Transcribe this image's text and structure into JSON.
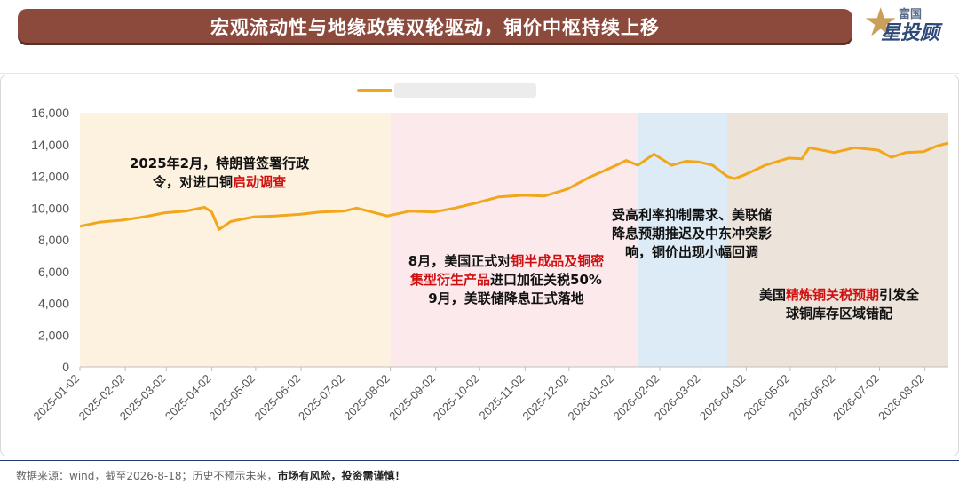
{
  "title": "宏观流动性与地缘政策双轮驱动，铜价中枢持续上移",
  "logo": {
    "line1": "富国",
    "line2": "星投顾"
  },
  "footer": {
    "source": "数据来源：wind，截至2026-8-18；历史不预示未来，",
    "risk": "市场有风险，投资需谨慎！"
  },
  "annotations": {
    "a1": [
      "2025年2月，特朗普签署行政",
      "令，对进口铜",
      "启动调查"
    ],
    "a2": [
      "8月，美国正式对",
      "铜半成品及铜密",
      "集型衍生产品",
      "进口加征关税50%",
      "9月，美联储降息正式落地"
    ],
    "a3": [
      "受高利率抑制需求、美联储",
      "降息预期推迟及中东冲突影",
      "响，铜价出现小幅回调"
    ],
    "a4": [
      "美国",
      "精炼铜关税预期",
      "引发全",
      "球铜库存区域错配"
    ]
  },
  "colors": {
    "line": "#f2a61c",
    "band1": "#fdf1df",
    "band2": "#fbe9ec",
    "band3": "#dcebf6",
    "band4": "#ece3da",
    "highlight": "#d01010"
  },
  "chart_data": {
    "type": "line",
    "title": "",
    "xlabel": "",
    "ylabel": "",
    "ylim": [
      0,
      16000
    ],
    "yticks": [
      0,
      2000,
      4000,
      6000,
      8000,
      10000,
      12000,
      14000,
      16000
    ],
    "ytick_labels": [
      "0",
      "2,000",
      "4,000",
      "6,000",
      "8,000",
      "10,000",
      "12,000",
      "14,000",
      "16,000"
    ],
    "xtick_labels": [
      "2025-01-02",
      "2025-02-02",
      "2025-03-02",
      "2025-04-02",
      "2025-05-02",
      "2025-06-02",
      "2025-07-02",
      "2025-08-02",
      "2025-09-02",
      "2025-10-02",
      "2025-11-02",
      "2025-12-02",
      "2026-01-02",
      "2026-02-02",
      "2026-03-02",
      "2026-04-02",
      "2026-05-02",
      "2026-06-02",
      "2026-07-02",
      "2026-08-02"
    ],
    "shaded_periods": [
      {
        "from": "2025-01-02",
        "to": "2025-08-02",
        "color": "band1"
      },
      {
        "from": "2025-08-02",
        "to": "2026-01-18",
        "color": "band2"
      },
      {
        "from": "2026-01-18",
        "to": "2026-03-20",
        "color": "band3"
      },
      {
        "from": "2026-03-20",
        "to": "2026-08-18",
        "color": "band4"
      }
    ],
    "series": [
      {
        "x": [
          "2025-01-02",
          "2025-01-15",
          "2025-02-01",
          "2025-02-15",
          "2025-03-01",
          "2025-03-15",
          "2025-03-28",
          "2025-04-02",
          "2025-04-07",
          "2025-04-15",
          "2025-05-01",
          "2025-05-15",
          "2025-06-01",
          "2025-06-15",
          "2025-07-01",
          "2025-07-10",
          "2025-07-31",
          "2025-08-15",
          "2025-09-01",
          "2025-09-15",
          "2025-10-01",
          "2025-10-15",
          "2025-11-01",
          "2025-11-15",
          "2025-12-01",
          "2025-12-15",
          "2026-01-01",
          "2026-01-10",
          "2026-01-18",
          "2026-01-29",
          "2026-02-10",
          "2026-02-20",
          "2026-03-01",
          "2026-03-10",
          "2026-03-20",
          "2026-03-25",
          "2026-04-01",
          "2026-04-15",
          "2026-05-01",
          "2026-05-10",
          "2026-05-15",
          "2026-06-01",
          "2026-06-15",
          "2026-07-01",
          "2026-07-10",
          "2026-07-20",
          "2026-08-01",
          "2026-08-10",
          "2026-08-18"
        ],
        "values": [
          8850,
          9100,
          9250,
          9450,
          9700,
          9800,
          10050,
          9750,
          8650,
          9150,
          9450,
          9500,
          9600,
          9750,
          9800,
          10000,
          9500,
          9800,
          9750,
          10000,
          10350,
          10700,
          10800,
          10750,
          11200,
          11900,
          12600,
          13000,
          12700,
          13400,
          12700,
          12950,
          12900,
          12700,
          12000,
          11850,
          12100,
          12700,
          13150,
          13100,
          13800,
          13500,
          13800,
          13650,
          13200,
          13500,
          13550,
          13900,
          14100
        ]
      }
    ]
  }
}
